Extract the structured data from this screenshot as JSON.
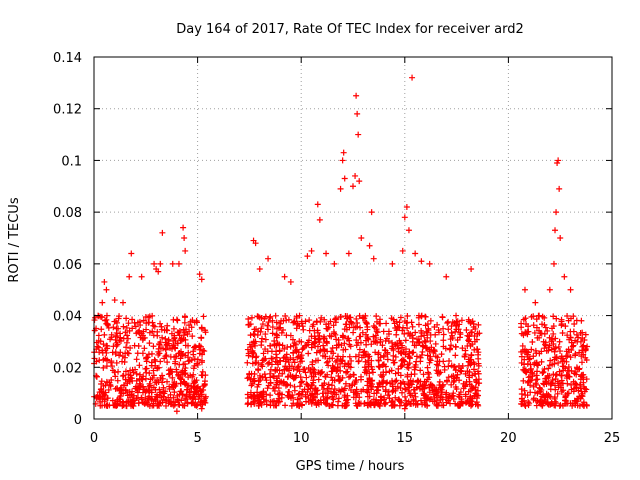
{
  "chart_data": {
    "type": "scatter",
    "title": "Day 164 of 2017, Rate Of TEC Index for receiver ard2",
    "xlabel": "GPS time / hours",
    "ylabel": "ROTI / TECUs",
    "xlim": [
      0,
      25
    ],
    "ylim": [
      0,
      0.14
    ],
    "xticks": [
      "0",
      "5",
      "10",
      "15",
      "20",
      "25"
    ],
    "xtick_values": [
      0,
      5,
      10,
      15,
      20,
      25
    ],
    "yticks": [
      "0",
      "0.02",
      "0.04",
      "0.06",
      "0.08",
      "0.1",
      "0.12",
      "0.14"
    ],
    "ytick_values": [
      0,
      0.02,
      0.04,
      0.06,
      0.08,
      0.1,
      0.12,
      0.14
    ],
    "grid": true,
    "marker": "+",
    "marker_color": "#ff0000",
    "observation_segments_hours": [
      [
        0,
        5.4
      ],
      [
        7.4,
        18.6
      ],
      [
        20.6,
        23.8
      ]
    ],
    "typical_range": [
      0.005,
      0.04
    ],
    "series": [
      {
        "points": [
          [
            0.1,
            0.035
          ],
          [
            0.2,
            0.04
          ],
          [
            0.4,
            0.045
          ],
          [
            0.5,
            0.053
          ],
          [
            0.6,
            0.05
          ],
          [
            1.0,
            0.046
          ],
          [
            1.4,
            0.045
          ],
          [
            1.7,
            0.055
          ],
          [
            1.8,
            0.064
          ],
          [
            2.3,
            0.055
          ],
          [
            2.9,
            0.06
          ],
          [
            3.0,
            0.058
          ],
          [
            3.1,
            0.057
          ],
          [
            3.2,
            0.06
          ],
          [
            3.3,
            0.072
          ],
          [
            3.8,
            0.06
          ],
          [
            4.1,
            0.06
          ],
          [
            4.3,
            0.074
          ],
          [
            4.35,
            0.07
          ],
          [
            4.4,
            0.065
          ],
          [
            5.1,
            0.056
          ],
          [
            5.2,
            0.054
          ],
          [
            4.0,
            0.003
          ],
          [
            5.2,
            0.004
          ],
          [
            7.7,
            0.069
          ],
          [
            7.8,
            0.068
          ],
          [
            8.0,
            0.058
          ],
          [
            8.4,
            0.062
          ],
          [
            9.2,
            0.055
          ],
          [
            9.5,
            0.053
          ],
          [
            10.3,
            0.063
          ],
          [
            10.5,
            0.065
          ],
          [
            10.8,
            0.083
          ],
          [
            10.9,
            0.077
          ],
          [
            11.2,
            0.064
          ],
          [
            11.6,
            0.06
          ],
          [
            11.9,
            0.089
          ],
          [
            12.0,
            0.1
          ],
          [
            12.05,
            0.103
          ],
          [
            12.1,
            0.093
          ],
          [
            12.3,
            0.064
          ],
          [
            12.5,
            0.09
          ],
          [
            12.6,
            0.094
          ],
          [
            12.65,
            0.125
          ],
          [
            12.7,
            0.118
          ],
          [
            12.75,
            0.11
          ],
          [
            12.8,
            0.092
          ],
          [
            12.9,
            0.07
          ],
          [
            13.3,
            0.067
          ],
          [
            13.4,
            0.08
          ],
          [
            13.5,
            0.062
          ],
          [
            14.4,
            0.06
          ],
          [
            14.9,
            0.065
          ],
          [
            15.0,
            0.078
          ],
          [
            15.1,
            0.082
          ],
          [
            15.2,
            0.073
          ],
          [
            15.35,
            0.132
          ],
          [
            15.5,
            0.064
          ],
          [
            15.8,
            0.061
          ],
          [
            16.2,
            0.06
          ],
          [
            17.0,
            0.055
          ],
          [
            18.2,
            0.058
          ],
          [
            15.0,
            0.004
          ],
          [
            20.8,
            0.05
          ],
          [
            21.3,
            0.045
          ],
          [
            22.0,
            0.05
          ],
          [
            22.2,
            0.06
          ],
          [
            22.25,
            0.073
          ],
          [
            22.3,
            0.08
          ],
          [
            22.35,
            0.099
          ],
          [
            22.4,
            0.1
          ],
          [
            22.45,
            0.089
          ],
          [
            22.5,
            0.07
          ],
          [
            22.7,
            0.055
          ],
          [
            23.0,
            0.05
          ]
        ]
      }
    ]
  }
}
